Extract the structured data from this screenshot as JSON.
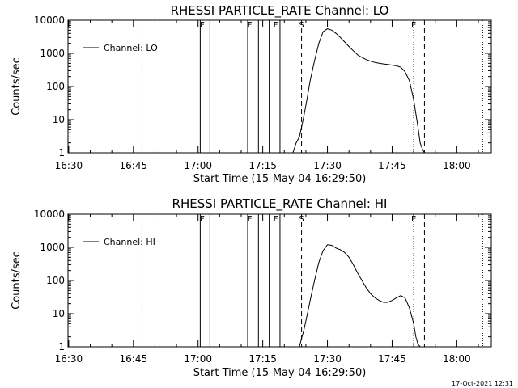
{
  "footer": {
    "timestamp": "17-Oct-2021 12:31"
  },
  "chart_data": [
    {
      "type": "line",
      "title": "RHESSI PARTICLE_RATE Channel: LO",
      "xlabel": "Start Time (15-May-04 16:29:50)",
      "ylabel": "Counts/sec",
      "y_scale": "log",
      "ylim": [
        1,
        10000
      ],
      "xlim": [
        "16:29:50",
        "18:08:00"
      ],
      "x_ticks": [
        "16:30",
        "16:45",
        "17:00",
        "17:15",
        "17:30",
        "17:45",
        "18:00"
      ],
      "y_ticks": [
        "1",
        "10",
        "100",
        "1000",
        "10000"
      ],
      "legend": {
        "label": "Channel: LO",
        "placement": "top-left"
      },
      "series": [
        {
          "name": "Channel: LO",
          "x": [
            "17:22:00",
            "17:22:45",
            "17:23:30",
            "17:24:00",
            "17:24:30",
            "17:25:15",
            "17:26:00",
            "17:27:00",
            "17:28:00",
            "17:29:00",
            "17:30:00",
            "17:31:00",
            "17:32:00",
            "17:33:00",
            "17:34:00",
            "17:35:00",
            "17:36:00",
            "17:37:00",
            "17:38:00",
            "17:39:00",
            "17:40:00",
            "17:41:00",
            "17:42:00",
            "17:43:00",
            "17:44:00",
            "17:45:00",
            "17:46:00",
            "17:47:00",
            "17:48:00",
            "17:49:00",
            "17:50:00",
            "17:51:00",
            "17:51:30",
            "17:52:00",
            "17:52:30"
          ],
          "y": [
            1,
            2,
            3,
            6,
            12,
            40,
            150,
            600,
            2000,
            4500,
            5500,
            5000,
            4000,
            3000,
            2200,
            1600,
            1200,
            900,
            750,
            650,
            580,
            530,
            500,
            480,
            460,
            440,
            420,
            380,
            280,
            150,
            40,
            6,
            2,
            1.3,
            1
          ]
        }
      ],
      "markers": [
        {
          "label": "F",
          "time": "17:01:00"
        },
        {
          "label": "F",
          "time": "17:12:00"
        },
        {
          "label": "F",
          "time": "17:18:00"
        },
        {
          "label": "S",
          "time": "17:24:00"
        },
        {
          "label": "E",
          "time": "17:50:00"
        }
      ],
      "shaded_intervals": [
        {
          "start": "17:00:30",
          "end": "17:02:45"
        },
        {
          "start": "17:11:30",
          "end": "17:14:00"
        },
        {
          "start": "17:16:30",
          "end": "17:19:00"
        }
      ],
      "dotted_lines": [
        "16:47:00",
        "17:50:00",
        "18:06:00"
      ],
      "dashed_lines": [
        "17:24:00",
        "17:52:30"
      ]
    },
    {
      "type": "line",
      "title": "RHESSI PARTICLE_RATE Channel: HI",
      "xlabel": "Start Time (15-May-04 16:29:50)",
      "ylabel": "Counts/sec",
      "y_scale": "log",
      "ylim": [
        1,
        10000
      ],
      "xlim": [
        "16:29:50",
        "18:08:00"
      ],
      "x_ticks": [
        "16:30",
        "16:45",
        "17:00",
        "17:15",
        "17:30",
        "17:45",
        "18:00"
      ],
      "y_ticks": [
        "1",
        "10",
        "100",
        "1000",
        "10000"
      ],
      "legend": {
        "label": "Channel: HI",
        "placement": "top-left"
      },
      "series": [
        {
          "name": "Channel: HI",
          "x": [
            "17:23:30",
            "17:24:00",
            "17:24:30",
            "17:25:00",
            "17:26:00",
            "17:27:00",
            "17:28:00",
            "17:29:00",
            "17:30:00",
            "17:31:00",
            "17:32:00",
            "17:33:00",
            "17:34:00",
            "17:35:00",
            "17:36:00",
            "17:37:00",
            "17:38:00",
            "17:39:00",
            "17:40:00",
            "17:41:00",
            "17:42:00",
            "17:43:00",
            "17:44:00",
            "17:45:00",
            "17:46:00",
            "17:47:00",
            "17:48:00",
            "17:49:00",
            "17:50:00",
            "17:50:30",
            "17:51:00",
            "17:51:30"
          ],
          "y": [
            1,
            1.8,
            3,
            6,
            25,
            100,
            350,
            800,
            1200,
            1150,
            950,
            850,
            700,
            500,
            300,
            170,
            100,
            60,
            40,
            30,
            25,
            22,
            22,
            25,
            30,
            35,
            30,
            15,
            5,
            2,
            1.2,
            1
          ]
        }
      ],
      "markers": [
        {
          "label": "F",
          "time": "17:01:00"
        },
        {
          "label": "F",
          "time": "17:12:00"
        },
        {
          "label": "F",
          "time": "17:18:00"
        },
        {
          "label": "S",
          "time": "17:24:00"
        },
        {
          "label": "E",
          "time": "17:50:00"
        }
      ],
      "shaded_intervals": [
        {
          "start": "17:00:30",
          "end": "17:02:45"
        },
        {
          "start": "17:11:30",
          "end": "17:14:00"
        },
        {
          "start": "17:16:30",
          "end": "17:19:00"
        }
      ],
      "dotted_lines": [
        "16:47:00",
        "17:50:00",
        "18:06:00"
      ],
      "dashed_lines": [
        "17:24:00",
        "17:52:30"
      ]
    }
  ]
}
